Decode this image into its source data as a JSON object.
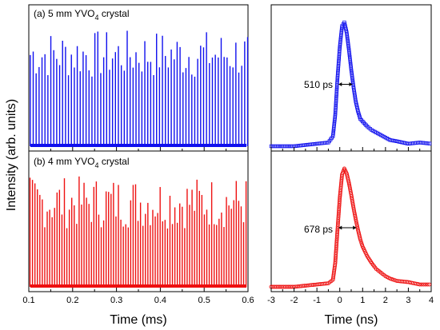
{
  "figure": {
    "ylabel": "Intensity (arb. units)",
    "left_xlabel": "Time (ms)",
    "right_xlabel": "Time (ns)"
  },
  "colors": {
    "blue": "#1010ee",
    "red": "#ee1111"
  },
  "chart_data": [
    {
      "type": "line",
      "panel": "(a)",
      "title_parts": [
        "(a) 5 mm YVO",
        "4",
        " crystal"
      ],
      "xlabel": "",
      "xlim": [
        0.1,
        0.6
      ],
      "xticks": [],
      "series": [
        {
          "color": "#1010ee",
          "pulse_period_ms": 0.0067,
          "pulse_peak_range_norm": [
            0.55,
            0.95
          ],
          "baseline_norm": 0.04
        }
      ]
    },
    {
      "type": "scatter",
      "panel": "(a) pulse",
      "title": "",
      "xlim": [
        -3,
        4
      ],
      "annotation": "510 ps",
      "series": [
        {
          "color": "#1010ee",
          "marker": "open-square",
          "x": [
            -3.0,
            -2.0,
            -1.0,
            -0.5,
            -0.3,
            -0.2,
            -0.1,
            0.0,
            0.1,
            0.2,
            0.3,
            0.4,
            0.5,
            0.6,
            0.7,
            0.8,
            0.9,
            1.0,
            1.2,
            1.4,
            1.6,
            1.8,
            2.0,
            2.2,
            2.5,
            3.0,
            3.5,
            4.0
          ],
          "y": [
            0.0,
            0.0,
            0.02,
            0.03,
            0.08,
            0.25,
            0.55,
            0.8,
            0.97,
            1.0,
            0.92,
            0.78,
            0.62,
            0.48,
            0.36,
            0.28,
            0.22,
            0.2,
            0.16,
            0.13,
            0.11,
            0.09,
            0.07,
            0.05,
            0.04,
            0.02,
            0.03,
            0.02
          ]
        }
      ]
    },
    {
      "type": "line",
      "panel": "(b)",
      "title_parts": [
        "(b) 4 mm YVO",
        "4",
        " crystal"
      ],
      "xlabel": "Time (ms)",
      "xlim": [
        0.1,
        0.6
      ],
      "xticks": [
        0.1,
        0.2,
        0.3,
        0.4,
        0.5,
        0.6
      ],
      "series": [
        {
          "color": "#ee1111",
          "pulse_period_ms": 0.0056,
          "pulse_peak_range_norm": [
            0.5,
            0.95
          ],
          "baseline_norm": 0.04
        }
      ]
    },
    {
      "type": "scatter",
      "panel": "(b) pulse",
      "title": "",
      "xlabel": "Time (ns)",
      "xlim": [
        -3,
        4
      ],
      "xticks": [
        -3,
        -2,
        -1,
        0,
        1,
        2,
        3,
        4
      ],
      "annotation": "678 ps",
      "series": [
        {
          "color": "#ee1111",
          "marker": "open-circle",
          "x": [
            -3.0,
            -2.0,
            -1.0,
            -0.5,
            -0.3,
            -0.2,
            -0.1,
            0.0,
            0.1,
            0.2,
            0.3,
            0.4,
            0.5,
            0.6,
            0.7,
            0.8,
            0.9,
            1.0,
            1.2,
            1.4,
            1.6,
            1.8,
            2.0,
            2.2,
            2.5,
            3.0,
            3.5,
            4.0
          ],
          "y": [
            0.0,
            0.0,
            0.02,
            0.03,
            0.06,
            0.2,
            0.48,
            0.75,
            0.95,
            1.0,
            0.96,
            0.88,
            0.78,
            0.67,
            0.57,
            0.48,
            0.4,
            0.34,
            0.26,
            0.2,
            0.15,
            0.12,
            0.09,
            0.07,
            0.05,
            0.04,
            0.02,
            0.02
          ]
        }
      ]
    }
  ]
}
